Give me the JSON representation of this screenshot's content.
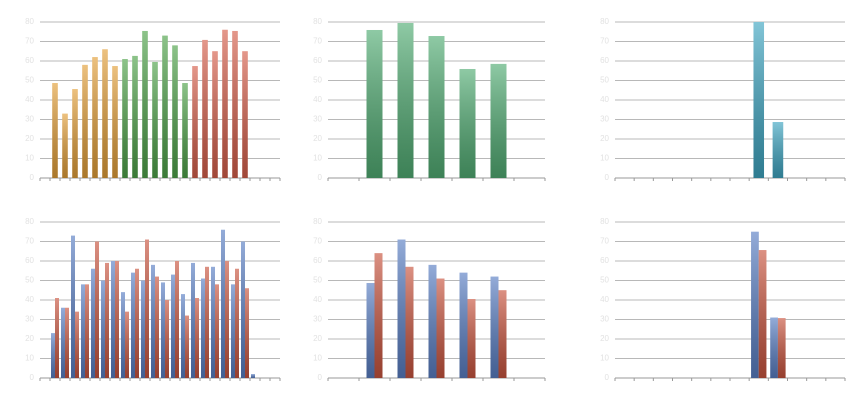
{
  "chart_data": [
    {
      "type": "bar",
      "grouped": false,
      "ylim": [
        0,
        80
      ],
      "yticks": [
        0,
        10,
        20,
        30,
        40,
        50,
        60,
        70,
        80
      ],
      "grid": true,
      "categories": [
        null,
        null,
        null,
        null,
        null,
        null,
        null,
        null,
        null,
        null,
        null,
        null,
        null,
        null,
        null,
        null,
        null,
        null,
        null,
        null,
        null,
        null,
        null,
        null
      ],
      "series": [
        {
          "color": "#e3a03a",
          "values": [
            null,
            48.7,
            33,
            45.6,
            58,
            62,
            66,
            57.4,
            null,
            null,
            null,
            null,
            null,
            null,
            null,
            null,
            null,
            null,
            null,
            null,
            null,
            null,
            null,
            null
          ]
        },
        {
          "color": "#4fa34a",
          "values": [
            null,
            null,
            null,
            null,
            null,
            null,
            null,
            null,
            61,
            62.6,
            75.4,
            59.5,
            73,
            68,
            48.7,
            null,
            null,
            null,
            null,
            null,
            null,
            null,
            null,
            null
          ]
        },
        {
          "color": "#d6604c",
          "values": [
            null,
            null,
            null,
            null,
            null,
            null,
            null,
            null,
            null,
            null,
            null,
            null,
            null,
            null,
            null,
            57.4,
            70.8,
            65,
            76,
            75.4,
            65,
            null,
            null,
            null
          ]
        }
      ]
    },
    {
      "type": "bar",
      "grouped": false,
      "ylim": [
        0,
        80
      ],
      "yticks": [
        0,
        10,
        20,
        30,
        40,
        50,
        60,
        70,
        80
      ],
      "grid": true,
      "categories": [
        null,
        null,
        null,
        null,
        null,
        null,
        null
      ],
      "series": [
        {
          "color": "#52ad74",
          "values": [
            null,
            75.9,
            79.5,
            72.8,
            55.9,
            58.5,
            null
          ]
        }
      ]
    },
    {
      "type": "bar",
      "grouped": false,
      "ylim": [
        0,
        80
      ],
      "yticks": [
        0,
        10,
        20,
        30,
        40,
        50,
        60,
        70,
        80
      ],
      "grid": true,
      "categories": [
        null,
        null,
        null,
        null,
        null,
        null,
        null,
        null,
        null,
        null,
        null,
        null
      ],
      "series": [
        {
          "color": "#3fa6c2",
          "values": [
            null,
            null,
            null,
            null,
            null,
            null,
            null,
            80,
            28.7,
            null,
            null,
            null
          ]
        }
      ]
    },
    {
      "type": "bar",
      "grouped": true,
      "ylim": [
        0,
        80
      ],
      "yticks": [
        0,
        10,
        20,
        30,
        40,
        50,
        60,
        70,
        80
      ],
      "grid": true,
      "categories": [
        null,
        null,
        null,
        null,
        null,
        null,
        null,
        null,
        null,
        null,
        null,
        null,
        null,
        null,
        null,
        null,
        null,
        null,
        null,
        null,
        null,
        null,
        null,
        null
      ],
      "series": [
        {
          "color": "#5a7fc4",
          "values": [
            null,
            23,
            36,
            73,
            48,
            56,
            50,
            60,
            44,
            54,
            50,
            58,
            49,
            53,
            43,
            59,
            51,
            57,
            76,
            48,
            70,
            2,
            null,
            null
          ]
        },
        {
          "color": "#c9553f",
          "values": [
            null,
            41,
            36,
            34,
            48,
            70,
            59,
            60,
            34,
            56,
            71,
            52,
            40,
            60,
            32,
            41,
            57,
            48,
            60,
            56,
            46,
            null,
            null,
            null
          ]
        }
      ]
    },
    {
      "type": "bar",
      "grouped": true,
      "ylim": [
        0,
        80
      ],
      "yticks": [
        0,
        10,
        20,
        30,
        40,
        50,
        60,
        70,
        80
      ],
      "grid": true,
      "categories": [
        null,
        null,
        null,
        null,
        null,
        null,
        null
      ],
      "series": [
        {
          "color": "#5a7fc4",
          "values": [
            null,
            48.7,
            71,
            58,
            54,
            52,
            null
          ]
        },
        {
          "color": "#c9553f",
          "values": [
            null,
            64,
            57,
            51,
            40.5,
            45,
            null
          ]
        }
      ]
    },
    {
      "type": "bar",
      "grouped": true,
      "ylim": [
        0,
        80
      ],
      "yticks": [
        0,
        10,
        20,
        30,
        40,
        50,
        60,
        70,
        80
      ],
      "grid": true,
      "categories": [
        null,
        null,
        null,
        null,
        null,
        null,
        null,
        null,
        null,
        null,
        null,
        null
      ],
      "series": [
        {
          "color": "#5a7fc4",
          "values": [
            null,
            null,
            null,
            null,
            null,
            null,
            null,
            75,
            31,
            null,
            null,
            null
          ]
        },
        {
          "color": "#c9553f",
          "values": [
            null,
            null,
            null,
            null,
            null,
            null,
            null,
            65.6,
            30.7,
            null,
            null,
            null
          ]
        }
      ]
    }
  ]
}
